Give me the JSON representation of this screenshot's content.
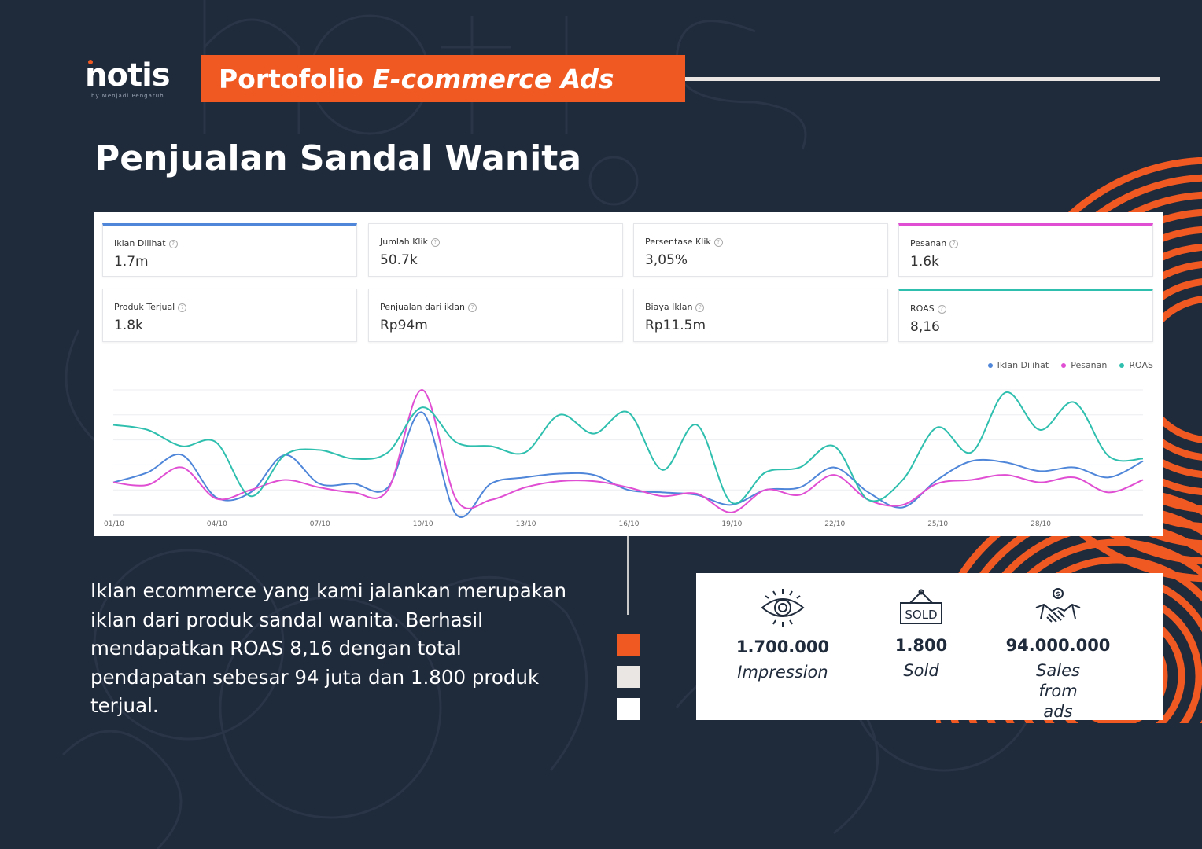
{
  "brand": {
    "logo": "notis",
    "tagline": "by Menjadi Pengaruh"
  },
  "header": {
    "banner_prefix": "Portofolio ",
    "banner_emphasis": "E-commerce Ads"
  },
  "page_title": "Penjualan Sandal Wanita",
  "kpis": [
    {
      "label": "Iklan Dilihat",
      "value": "1.7m",
      "accent": "#4f86d9"
    },
    {
      "label": "Jumlah Klik",
      "value": "50.7k"
    },
    {
      "label": "Persentase Klik",
      "value": "3,05%"
    },
    {
      "label": "Pesanan",
      "value": "1.6k",
      "accent": "#e04fd3"
    },
    {
      "label": "Produk Terjual",
      "value": "1.8k"
    },
    {
      "label": "Penjualan dari iklan",
      "value": "Rp94m"
    },
    {
      "label": "Biaya Iklan",
      "value": "Rp11.5m"
    },
    {
      "label": "ROAS",
      "value": "8,16",
      "accent": "#2fbfae"
    }
  ],
  "chart_data": {
    "type": "line",
    "x": [
      "01/10",
      "02/10",
      "03/10",
      "04/10",
      "05/10",
      "06/10",
      "07/10",
      "08/10",
      "09/10",
      "10/10",
      "11/10",
      "12/10",
      "13/10",
      "14/10",
      "15/10",
      "16/10",
      "17/10",
      "18/10",
      "19/10",
      "20/10",
      "21/10",
      "22/10",
      "23/10",
      "24/10",
      "25/10",
      "26/10",
      "27/10",
      "28/10",
      "29/10",
      "30/10",
      "31/10"
    ],
    "tick_labels": [
      "01/10",
      "04/10",
      "07/10",
      "10/10",
      "13/10",
      "16/10",
      "19/10",
      "22/10",
      "25/10",
      "28/10"
    ],
    "series": [
      {
        "name": "Iklan Dilihat",
        "color": "#4f86d9",
        "values": [
          26,
          34,
          48,
          14,
          18,
          48,
          25,
          25,
          22,
          82,
          0,
          25,
          30,
          33,
          32,
          20,
          18,
          16,
          8,
          20,
          22,
          38,
          18,
          6,
          28,
          43,
          42,
          35,
          38,
          30,
          43
        ]
      },
      {
        "name": "Pesanan",
        "color": "#e04fd3",
        "values": [
          26,
          24,
          38,
          13,
          20,
          28,
          22,
          18,
          20,
          100,
          12,
          12,
          22,
          27,
          27,
          22,
          15,
          17,
          2,
          20,
          16,
          32,
          12,
          8,
          25,
          28,
          32,
          26,
          30,
          18,
          28
        ]
      },
      {
        "name": "ROAS",
        "color": "#2fbfae",
        "values": [
          72,
          68,
          55,
          58,
          15,
          48,
          52,
          45,
          50,
          86,
          58,
          55,
          50,
          80,
          65,
          82,
          36,
          72,
          10,
          34,
          38,
          55,
          12,
          28,
          70,
          50,
          98,
          68,
          90,
          47,
          45
        ]
      }
    ],
    "legend": [
      "Iklan Dilihat",
      "Pesanan",
      "ROAS"
    ],
    "legend_position": "top-right",
    "grid": true
  },
  "description": "Iklan ecommerce yang kami jalankan merupakan iklan dari produk sandal wanita. Berhasil mendapatkan ROAS 8,16 dengan total pendapatan sebesar 94 juta dan 1.800 produk terjual.",
  "squares": [
    "#f05a22",
    "#e9e6e3",
    "#ffffff"
  ],
  "stats": [
    {
      "icon": "eye-icon",
      "value": "1.700.000",
      "label": "Impression"
    },
    {
      "icon": "sold-sign-icon",
      "value": "1.800",
      "label": "Sold"
    },
    {
      "icon": "handshake-money-icon",
      "value": "94.000.000",
      "label": "Sales from ads"
    }
  ],
  "colors": {
    "background": "#1f2a3b",
    "accent": "#f05a22",
    "light": "#e9e6e3"
  }
}
